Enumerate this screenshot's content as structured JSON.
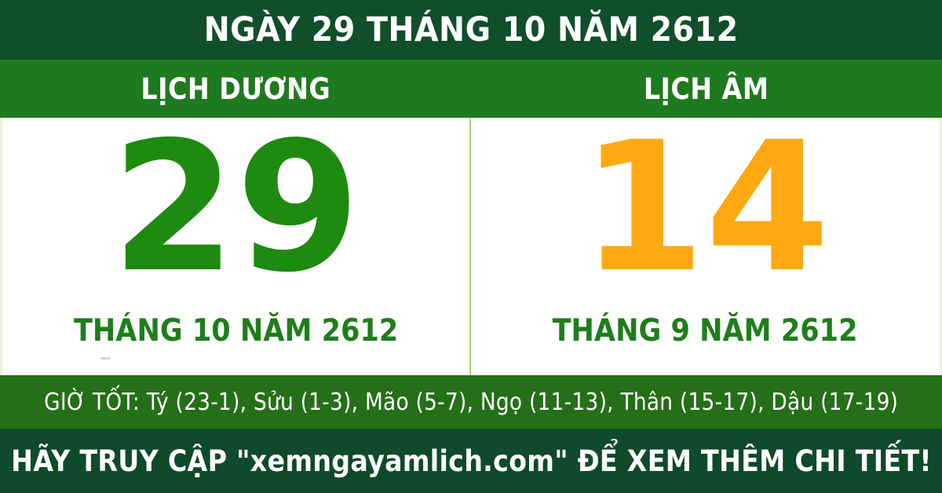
{
  "colors": {
    "top_bar_bg": "#114e2b",
    "header_row_bg": "#1e7a1e",
    "panel_bg": "#ffffff",
    "solar_day_color": "#1e8a10",
    "lunar_day_color": "#ffa812",
    "month_label_color": "#1e7e1a",
    "good_hours_bg": "#256f18",
    "footer_bg": "#0f4a2a",
    "divider": "#a8d878",
    "edge_border": "#e9f1dd",
    "text_light": "#ffffff"
  },
  "title_bar": {
    "text": "NGÀY 29 THÁNG 10 NĂM 2612"
  },
  "header_row": {
    "solar_label": "LỊCH DƯƠNG",
    "lunar_label": "LỊCH ÂM"
  },
  "solar_panel": {
    "day": "29",
    "month_year": "THÁNG 10 NĂM 2612"
  },
  "lunar_panel": {
    "day": "14",
    "month_year": "THÁNG 9 NĂM 2612"
  },
  "good_hours_bar": {
    "text": "GIỜ TỐT: Tý (23-1), Sửu (1-3), Mão (5-7), Ngọ (11-13), Thân (15-17), Dậu (17-19)"
  },
  "footer_bar": {
    "text": "HÃY TRUY CẬP \"xemngayamlich.com\" ĐỂ XEM THÊM CHI TIẾT!"
  }
}
